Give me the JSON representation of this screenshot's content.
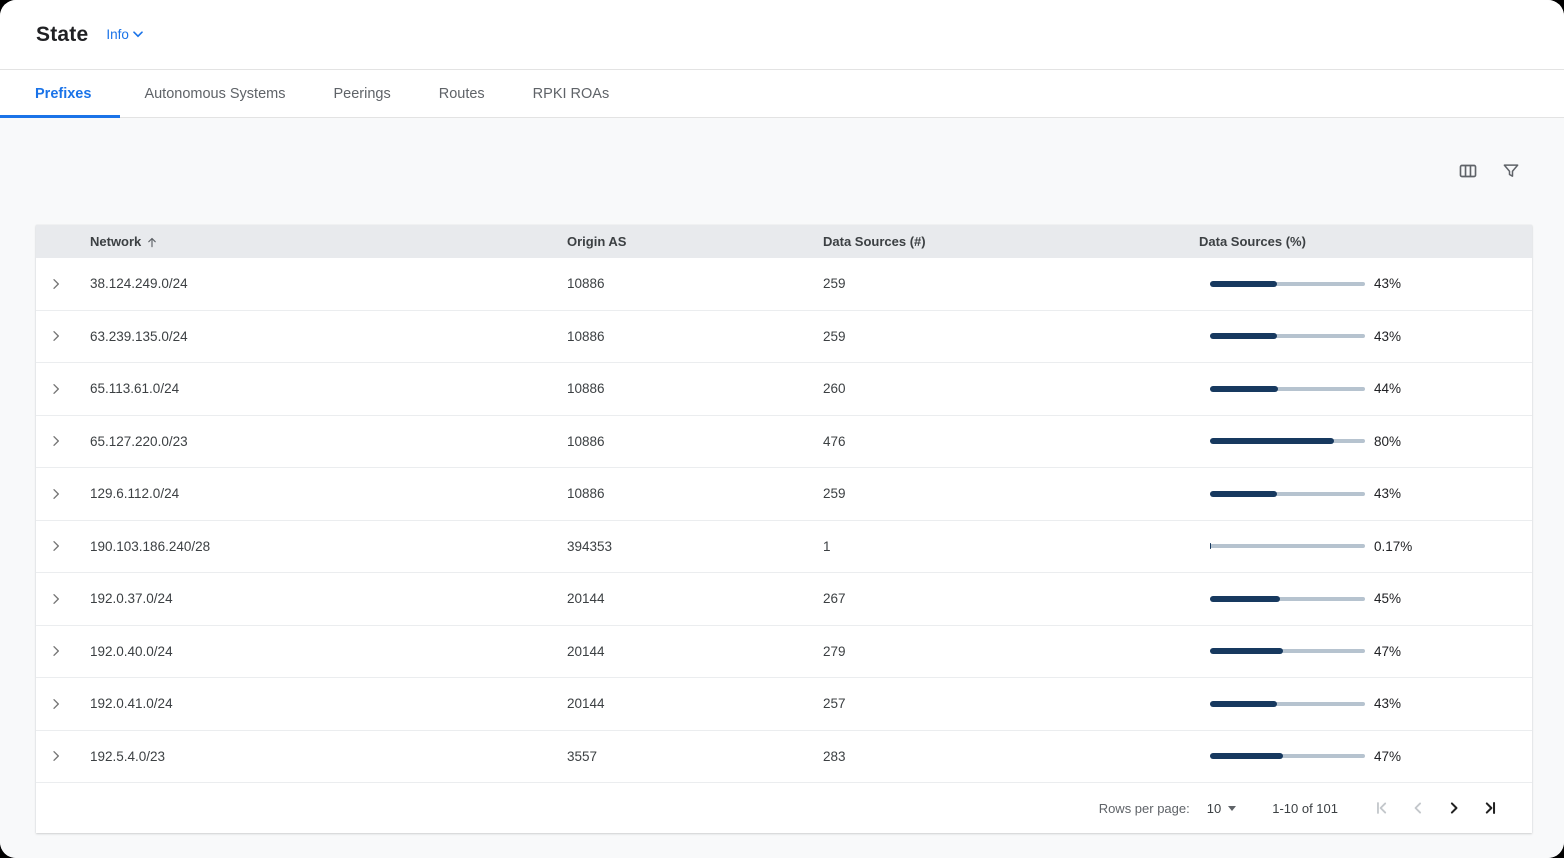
{
  "page": {
    "title": "State",
    "info_label": "Info"
  },
  "tabs": [
    {
      "label": "Prefixes",
      "active": true
    },
    {
      "label": "Autonomous Systems",
      "active": false
    },
    {
      "label": "Peerings",
      "active": false
    },
    {
      "label": "Routes",
      "active": false
    },
    {
      "label": "RPKI ROAs",
      "active": false
    }
  ],
  "toolbar": {
    "column_settings_icon": "column-settings",
    "filter_icon": "filter"
  },
  "table": {
    "columns": [
      {
        "label": "Network",
        "sorted": "asc"
      },
      {
        "label": "Origin AS"
      },
      {
        "label": "Data Sources (#)"
      },
      {
        "label": "Data Sources (%)"
      }
    ],
    "rows": [
      {
        "network": "38.124.249.0/24",
        "origin_as": "10886",
        "data_sources_count": "259",
        "data_sources_pct": 43,
        "data_sources_pct_label": "43%"
      },
      {
        "network": "63.239.135.0/24",
        "origin_as": "10886",
        "data_sources_count": "259",
        "data_sources_pct": 43,
        "data_sources_pct_label": "43%"
      },
      {
        "network": "65.113.61.0/24",
        "origin_as": "10886",
        "data_sources_count": "260",
        "data_sources_pct": 44,
        "data_sources_pct_label": "44%"
      },
      {
        "network": "65.127.220.0/23",
        "origin_as": "10886",
        "data_sources_count": "476",
        "data_sources_pct": 80,
        "data_sources_pct_label": "80%"
      },
      {
        "network": "129.6.112.0/24",
        "origin_as": "10886",
        "data_sources_count": "259",
        "data_sources_pct": 43,
        "data_sources_pct_label": "43%"
      },
      {
        "network": "190.103.186.240/28",
        "origin_as": "394353",
        "data_sources_count": "1",
        "data_sources_pct": 0.17,
        "data_sources_pct_label": "0.17%"
      },
      {
        "network": "192.0.37.0/24",
        "origin_as": "20144",
        "data_sources_count": "267",
        "data_sources_pct": 45,
        "data_sources_pct_label": "45%"
      },
      {
        "network": "192.0.40.0/24",
        "origin_as": "20144",
        "data_sources_count": "279",
        "data_sources_pct": 47,
        "data_sources_pct_label": "47%"
      },
      {
        "network": "192.0.41.0/24",
        "origin_as": "20144",
        "data_sources_count": "257",
        "data_sources_pct": 43,
        "data_sources_pct_label": "43%"
      },
      {
        "network": "192.5.4.0/23",
        "origin_as": "3557",
        "data_sources_count": "283",
        "data_sources_pct": 47,
        "data_sources_pct_label": "47%"
      }
    ]
  },
  "pagination": {
    "rows_per_page_label": "Rows per page:",
    "rows_per_page_value": "10",
    "range_label": "1-10 of 101"
  },
  "colors": {
    "accent": "#1a73e8",
    "bar_fill": "#17395f",
    "bar_track": "#b6c3cf",
    "header_bg": "#e8eaed",
    "content_bg": "#f8f9fa"
  }
}
